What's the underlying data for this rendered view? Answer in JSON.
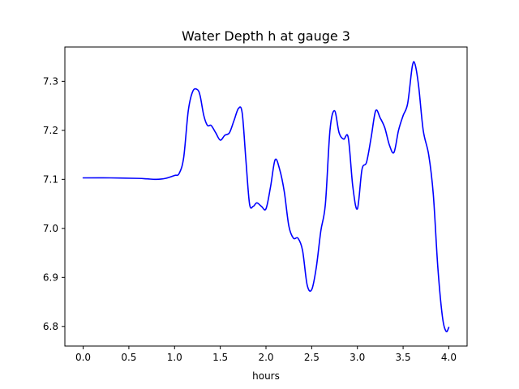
{
  "chart_data": {
    "type": "line",
    "title": "Water Depth h at gauge 3",
    "xlabel": "hours",
    "ylabel": "",
    "xlim": [
      -0.2,
      4.2
    ],
    "ylim": [
      6.76,
      7.37
    ],
    "xticks": [
      0.0,
      0.5,
      1.0,
      1.5,
      2.0,
      2.5,
      3.0,
      3.5,
      4.0
    ],
    "xtick_labels": [
      "0.0",
      "0.5",
      "1.0",
      "1.5",
      "2.0",
      "2.5",
      "3.0",
      "3.5",
      "4.0"
    ],
    "yticks": [
      6.8,
      6.9,
      7.0,
      7.1,
      7.2,
      7.3
    ],
    "ytick_labels": [
      "6.8",
      "6.9",
      "7.0",
      "7.1",
      "7.2",
      "7.3"
    ],
    "grid": false,
    "series": [
      {
        "color": "#0000ff",
        "x": [
          0.0,
          0.3,
          0.6,
          0.7,
          0.8,
          0.9,
          1.0,
          1.05,
          1.1,
          1.15,
          1.2,
          1.25,
          1.28,
          1.32,
          1.36,
          1.4,
          1.45,
          1.5,
          1.55,
          1.6,
          1.65,
          1.7,
          1.74,
          1.78,
          1.82,
          1.86,
          1.9,
          1.95,
          2.0,
          2.05,
          2.1,
          2.15,
          2.2,
          2.25,
          2.3,
          2.35,
          2.4,
          2.45,
          2.5,
          2.55,
          2.6,
          2.65,
          2.7,
          2.75,
          2.8,
          2.85,
          2.9,
          2.95,
          3.0,
          3.05,
          3.1,
          3.15,
          3.2,
          3.25,
          3.3,
          3.35,
          3.4,
          3.45,
          3.5,
          3.55,
          3.6,
          3.63,
          3.67,
          3.72,
          3.78,
          3.83,
          3.88,
          3.93,
          3.97,
          4.0
        ],
        "y": [
          7.103,
          7.103,
          7.102,
          7.101,
          7.1,
          7.102,
          7.108,
          7.112,
          7.145,
          7.24,
          7.28,
          7.283,
          7.27,
          7.23,
          7.21,
          7.21,
          7.195,
          7.18,
          7.19,
          7.195,
          7.22,
          7.245,
          7.235,
          7.14,
          7.05,
          7.045,
          7.052,
          7.045,
          7.04,
          7.085,
          7.14,
          7.12,
          7.075,
          7.005,
          6.98,
          6.98,
          6.955,
          6.885,
          6.875,
          6.92,
          6.995,
          7.05,
          7.2,
          7.24,
          7.195,
          7.182,
          7.185,
          7.085,
          7.04,
          7.12,
          7.135,
          7.185,
          7.24,
          7.225,
          7.205,
          7.17,
          7.155,
          7.2,
          7.23,
          7.255,
          7.33,
          7.335,
          7.29,
          7.2,
          7.15,
          7.07,
          6.92,
          6.82,
          6.79,
          6.798
        ]
      }
    ]
  }
}
